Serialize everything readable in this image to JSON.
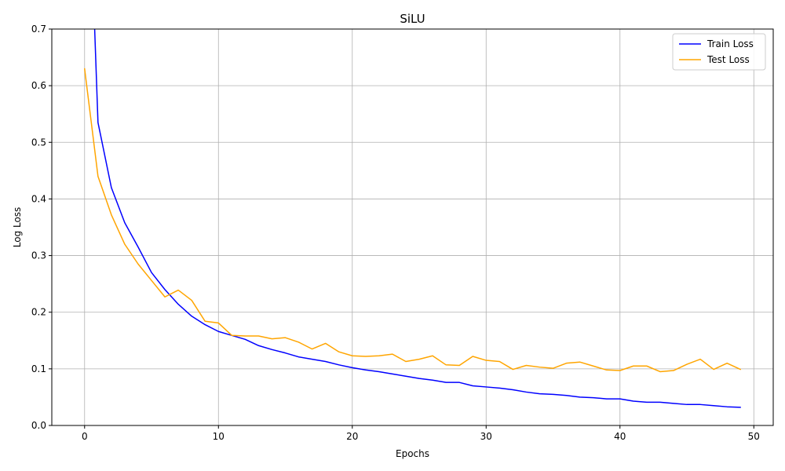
{
  "chart_data": {
    "type": "line",
    "title": "SiLU",
    "xlabel": "Epochs",
    "ylabel": "Log Loss",
    "xlim": [
      -2.45,
      51.45
    ],
    "ylim": [
      0.0,
      0.7
    ],
    "xticks": [
      0,
      10,
      20,
      30,
      40,
      50
    ],
    "yticks": [
      0.0,
      0.1,
      0.2,
      0.3,
      0.4,
      0.5,
      0.6,
      0.7
    ],
    "xtick_labels": [
      "0",
      "10",
      "20",
      "30",
      "40",
      "50"
    ],
    "ytick_labels": [
      "0.0",
      "0.1",
      "0.2",
      "0.3",
      "0.4",
      "0.5",
      "0.6",
      "0.7"
    ],
    "grid": true,
    "legend_position": "top-right",
    "x": [
      0,
      1,
      2,
      3,
      4,
      5,
      6,
      7,
      8,
      9,
      10,
      11,
      12,
      13,
      14,
      15,
      16,
      17,
      18,
      19,
      20,
      21,
      22,
      23,
      24,
      25,
      26,
      27,
      28,
      29,
      30,
      31,
      32,
      33,
      34,
      35,
      36,
      37,
      38,
      39,
      40,
      41,
      42,
      43,
      44,
      45,
      46,
      47,
      48,
      49
    ],
    "series": [
      {
        "name": "Train Loss",
        "color": "#0000ff",
        "values": [
          1.2,
          0.535,
          0.42,
          0.358,
          0.315,
          0.27,
          0.24,
          0.214,
          0.193,
          0.178,
          0.166,
          0.159,
          0.152,
          0.141,
          0.134,
          0.128,
          0.121,
          0.117,
          0.113,
          0.107,
          0.102,
          0.098,
          0.095,
          0.091,
          0.087,
          0.083,
          0.08,
          0.076,
          0.076,
          0.07,
          0.068,
          0.066,
          0.063,
          0.059,
          0.056,
          0.055,
          0.053,
          0.05,
          0.049,
          0.047,
          0.047,
          0.043,
          0.041,
          0.041,
          0.039,
          0.037,
          0.037,
          0.035,
          0.033,
          0.032
        ]
      },
      {
        "name": "Test Loss",
        "color": "#ffa500",
        "values": [
          0.63,
          0.44,
          0.372,
          0.32,
          0.285,
          0.256,
          0.227,
          0.239,
          0.221,
          0.184,
          0.181,
          0.159,
          0.158,
          0.158,
          0.153,
          0.155,
          0.147,
          0.135,
          0.145,
          0.13,
          0.123,
          0.122,
          0.123,
          0.126,
          0.113,
          0.117,
          0.123,
          0.107,
          0.106,
          0.122,
          0.115,
          0.113,
          0.099,
          0.106,
          0.103,
          0.101,
          0.11,
          0.112,
          0.105,
          0.098,
          0.097,
          0.105,
          0.105,
          0.095,
          0.097,
          0.108,
          0.117,
          0.099,
          0.11,
          0.099
        ]
      }
    ]
  }
}
